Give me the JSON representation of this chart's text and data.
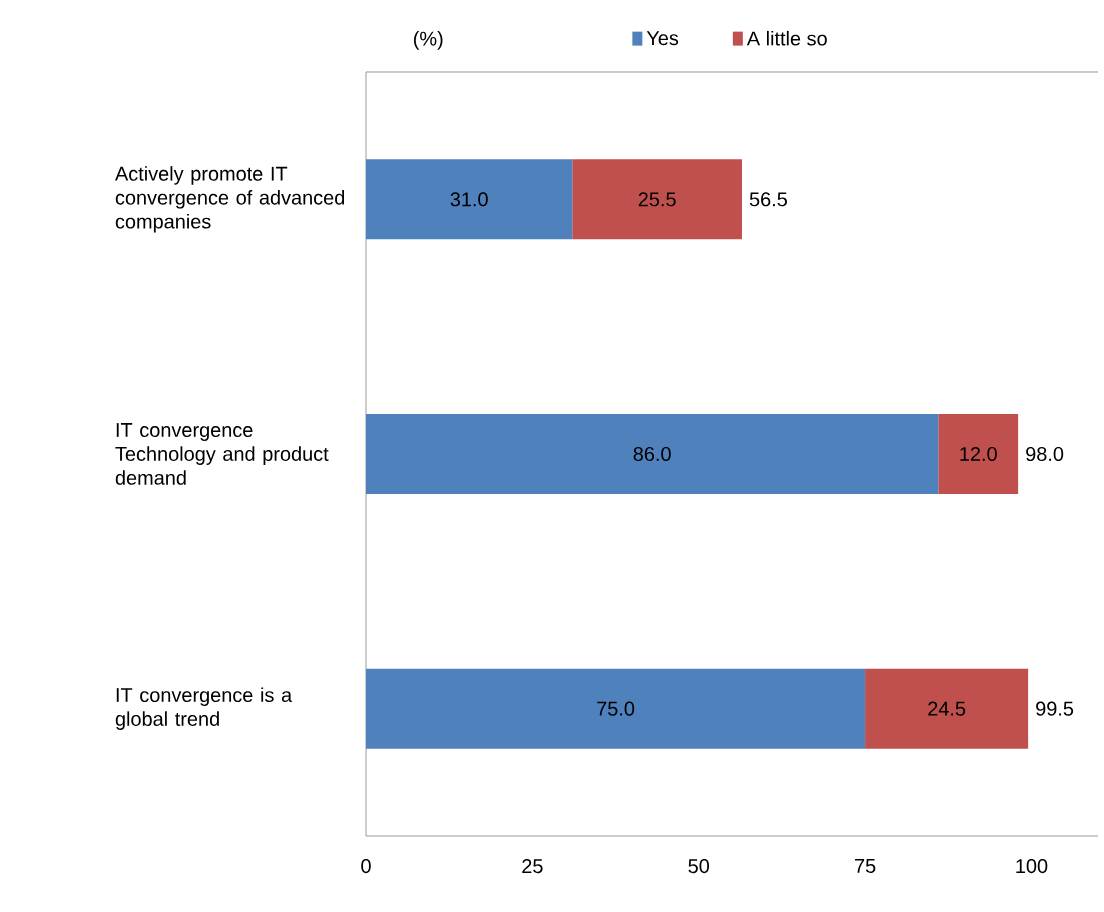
{
  "chart_data": {
    "type": "bar",
    "orientation": "horizontal",
    "stacked": true,
    "categories": [
      "Actively promote IT convergence of advanced companies",
      "IT convergence Technology and product demand",
      "IT convergence is a global trend"
    ],
    "series": [
      {
        "name": "Yes",
        "color": "#4f81bd",
        "values": [
          31.0,
          86.0,
          75.0
        ],
        "value_labels": [
          "31.0",
          "86.0",
          "75.0"
        ]
      },
      {
        "name": "A little  so",
        "color": "#c0504d",
        "values": [
          25.5,
          12.0,
          24.5
        ],
        "value_labels": [
          "25.5",
          "12.0",
          "24.5"
        ]
      }
    ],
    "totals": [
      "56.5",
      "98.0",
      "99.5"
    ],
    "xlim": [
      0,
      110
    ],
    "xticks": [
      0,
      25,
      50,
      75,
      100
    ],
    "legend": "top",
    "grid": false,
    "annotations": [
      "(%)"
    ]
  }
}
